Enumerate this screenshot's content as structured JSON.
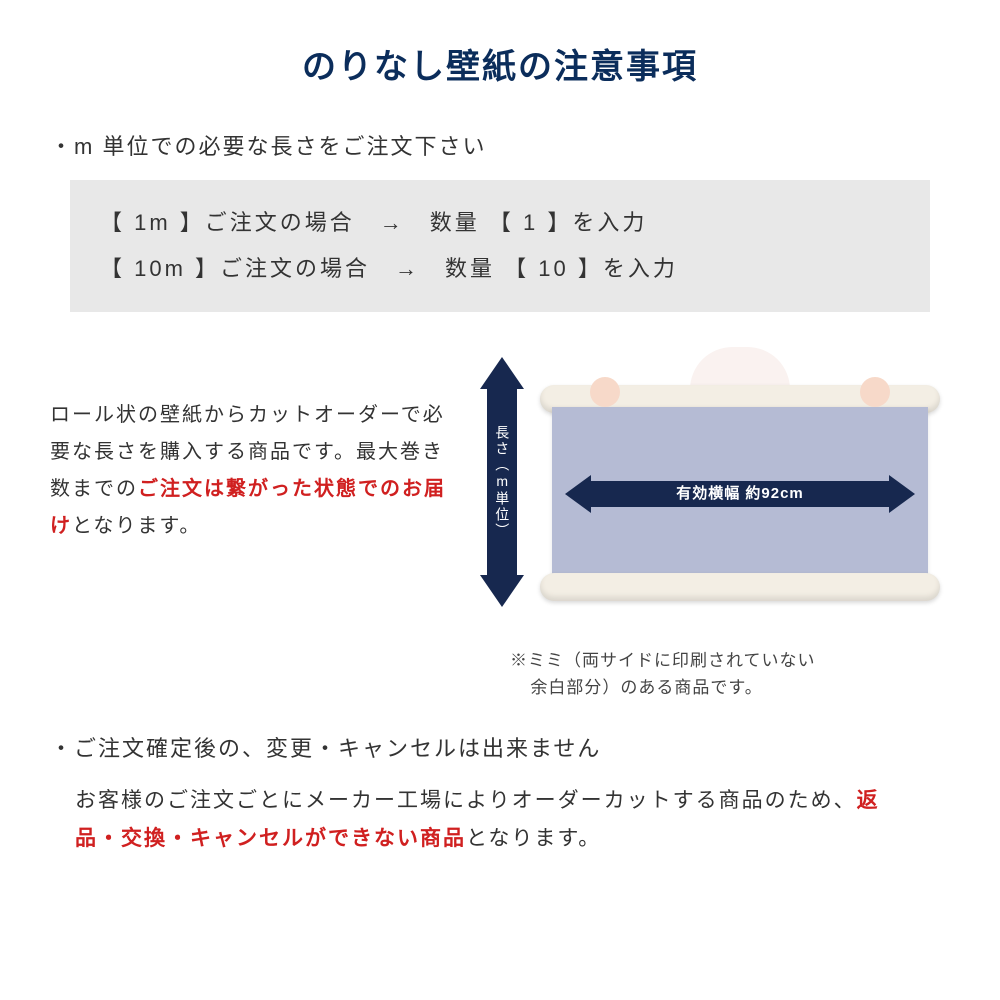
{
  "title": "のりなし壁紙の注意事項",
  "bullet1": "・m 単位での必要な長さをご注文下さい",
  "example": {
    "line1": "【 1m 】ご注文の場合　→　数量 【 1 】を入力",
    "line2": "【 10m 】ご注文の場合　→　数量 【 10 】を入力"
  },
  "midleft": {
    "t1": "ロール状の壁紙からカットオーダーで必要な長さを購入する商品です。最大巻き数までの",
    "t2": "ご注文は繋がった状態でのお届け",
    "t3": "となります。"
  },
  "diagram": {
    "v_label": "長さ（m単位）",
    "h_label": "有効横幅 約92cm",
    "paper_color": "#b5bbd4",
    "arrow_color": "#17284f",
    "width_cm": 92
  },
  "note": {
    "line1": "※ミミ（両サイドに印刷されていない",
    "line2": "余白部分）のある商品です。"
  },
  "bullet2": "・ご注文確定後の、変更・キャンセルは出来ません",
  "para2": {
    "t1": "お客様のご注文ごとにメーカー工場によりオーダーカットする商品のため、",
    "t2": "返品・交換・キャンセルができない商品",
    "t3": "となります。"
  },
  "colors": {
    "title": "#0b2d5b",
    "red": "#d02020",
    "box_bg": "#e8e8e8",
    "text": "#333333"
  }
}
